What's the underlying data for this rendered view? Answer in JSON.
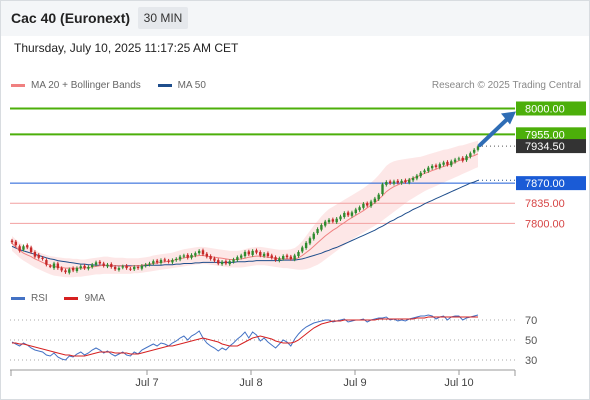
{
  "header": {
    "title": "Cac 40 (Euronext)",
    "timeframe": "30 MIN",
    "datetime": "Thursday, July 10, 2025 11:17:25 AM CET"
  },
  "legend": {
    "ma20": "MA 20 + Bollinger Bands",
    "ma50": "MA 50",
    "rsi": "RSI",
    "ma9": "9MA",
    "credit": "Research © 2025 Trading Central"
  },
  "colors": {
    "ma20": "#f08080",
    "ma50": "#1f4e8c",
    "bollinger": "#fde3e3",
    "target": "#4caf0a",
    "support_blue": "#1a5bd6",
    "support_red": "#d64545",
    "arrow": "#2f6db5",
    "rsi": "#4472c4",
    "rsi_ma": "#d62020"
  },
  "chart_data": [
    {
      "type": "candlestick",
      "title": "Cac 40 (Euronext)",
      "timeframe": "30 MIN",
      "x_ticks": [
        "Jul 7",
        "Jul 8",
        "Jul 9",
        "Jul 10"
      ],
      "ylim": [
        7710,
        8020
      ],
      "last_price": 7934.5,
      "levels": [
        {
          "value": 8000.0,
          "label": "8000.00",
          "kind": "target"
        },
        {
          "value": 7955.0,
          "label": "7955.00",
          "kind": "target"
        },
        {
          "value": 7870.0,
          "label": "7870.00",
          "kind": "pivot"
        },
        {
          "value": 7835.0,
          "label": "7835.00",
          "kind": "support"
        },
        {
          "value": 7800.0,
          "label": "7800.00",
          "kind": "support"
        }
      ],
      "last_price_label": "7934.50",
      "close": [
        7767,
        7762,
        7752,
        7760,
        7758,
        7750,
        7742,
        7740,
        7738,
        7728,
        7725,
        7730,
        7722,
        7718,
        7715,
        7720,
        7718,
        7722,
        7725,
        7722,
        7724,
        7728,
        7732,
        7730,
        7726,
        7728,
        7724,
        7720,
        7722,
        7725,
        7722,
        7720,
        7724,
        7722,
        7726,
        7728,
        7730,
        7734,
        7732,
        7736,
        7735,
        7733,
        7736,
        7738,
        7742,
        7744,
        7740,
        7745,
        7748,
        7752,
        7746,
        7742,
        7738,
        7735,
        7730,
        7733,
        7730,
        7734,
        7737,
        7741,
        7744,
        7750,
        7746,
        7752,
        7749,
        7744,
        7747,
        7743,
        7740,
        7736,
        7739,
        7743,
        7741,
        7738,
        7744,
        7750,
        7758,
        7766,
        7774,
        7782,
        7790,
        7797,
        7803,
        7806,
        7803,
        7808,
        7812,
        7818,
        7814,
        7819,
        7824,
        7828,
        7834,
        7831,
        7838,
        7843,
        7850,
        7868,
        7872,
        7870,
        7873,
        7871,
        7874,
        7872,
        7876,
        7879,
        7883,
        7888,
        7892,
        7897,
        7900,
        7898,
        7903,
        7906,
        7902,
        7908,
        7911,
        7913,
        7909,
        7917,
        7922,
        7928,
        7934
      ],
      "open": [
        7770,
        7768,
        7760,
        7754,
        7762,
        7758,
        7750,
        7745,
        7740,
        7736,
        7726,
        7722,
        7730,
        7722,
        7718,
        7714,
        7722,
        7717,
        7722,
        7726,
        7721,
        7724,
        7728,
        7733,
        7730,
        7725,
        7729,
        7724,
        7719,
        7723,
        7726,
        7721,
        7720,
        7724,
        7721,
        7726,
        7728,
        7730,
        7735,
        7731,
        7737,
        7735,
        7732,
        7736,
        7737,
        7742,
        7745,
        7740,
        7744,
        7748,
        7753,
        7747,
        7743,
        7739,
        7736,
        7729,
        7734,
        7729,
        7733,
        7736,
        7740,
        7743,
        7751,
        7745,
        7753,
        7750,
        7743,
        7748,
        7744,
        7741,
        7735,
        7738,
        7744,
        7742,
        7737,
        7743,
        7751,
        7757,
        7765,
        7773,
        7783,
        7789,
        7796,
        7802,
        7807,
        7802,
        7807,
        7811,
        7819,
        7813,
        7818,
        7823,
        7827,
        7835,
        7830,
        7837,
        7842,
        7851,
        7867,
        7873,
        7869,
        7874,
        7870,
        7875,
        7871,
        7875,
        7878,
        7882,
        7889,
        7891,
        7896,
        7901,
        7897,
        7902,
        7907,
        7901,
        7907,
        7912,
        7914,
        7910,
        7916,
        7923,
        7928
      ],
      "bollinger_upper": [
        7778,
        7772,
        7766,
        7762,
        7760,
        7757,
        7754,
        7750,
        7747,
        7745,
        7743,
        7742,
        7741,
        7740,
        7739,
        7739,
        7738,
        7738,
        7737,
        7737,
        7738,
        7739,
        7740,
        7741,
        7742,
        7742,
        7741,
        7740,
        7740,
        7740,
        7739,
        7739,
        7739,
        7739,
        7740,
        7741,
        7742,
        7744,
        7745,
        7746,
        7747,
        7748,
        7749,
        7751,
        7753,
        7755,
        7756,
        7757,
        7758,
        7759,
        7759,
        7758,
        7757,
        7756,
        7755,
        7754,
        7753,
        7752,
        7752,
        7752,
        7753,
        7755,
        7757,
        7758,
        7759,
        7759,
        7758,
        7757,
        7756,
        7755,
        7754,
        7754,
        7754,
        7755,
        7757,
        7762,
        7769,
        7778,
        7787,
        7796,
        7804,
        7812,
        7819,
        7825,
        7829,
        7833,
        7837,
        7841,
        7845,
        7849,
        7853,
        7857,
        7861,
        7866,
        7871,
        7877,
        7884,
        7892,
        7900,
        7905,
        7908,
        7910,
        7911,
        7912,
        7913,
        7914,
        7915,
        7916,
        7918,
        7920,
        7922,
        7924,
        7926,
        7928,
        7929,
        7931,
        7933,
        7935,
        7936,
        7938,
        7940,
        7942,
        7944
      ],
      "bollinger_lower": [
        7752,
        7746,
        7740,
        7735,
        7731,
        7727,
        7723,
        7720,
        7717,
        7714,
        7711,
        7709,
        7708,
        7707,
        7706,
        7706,
        7706,
        7707,
        7707,
        7708,
        7709,
        7710,
        7711,
        7711,
        7712,
        7712,
        7712,
        7712,
        7712,
        7712,
        7712,
        7712,
        7713,
        7713,
        7714,
        7715,
        7716,
        7717,
        7718,
        7719,
        7720,
        7721,
        7722,
        7723,
        7724,
        7725,
        7726,
        7727,
        7728,
        7729,
        7729,
        7729,
        7728,
        7727,
        7726,
        7725,
        7724,
        7723,
        7723,
        7723,
        7723,
        7724,
        7725,
        7726,
        7727,
        7727,
        7727,
        7726,
        7725,
        7724,
        7723,
        7722,
        7722,
        7721,
        7720,
        7719,
        7719,
        7720,
        7722,
        7725,
        7728,
        7732,
        7737,
        7742,
        7747,
        7752,
        7757,
        7762,
        7767,
        7772,
        7776,
        7780,
        7784,
        7788,
        7792,
        7796,
        7800,
        7805,
        7810,
        7815,
        7820,
        7825,
        7830,
        7835,
        7840,
        7844,
        7848,
        7852,
        7856,
        7859,
        7862,
        7865,
        7868,
        7871,
        7874,
        7877,
        7880,
        7883,
        7886,
        7889,
        7892,
        7895,
        7898
      ],
      "ma20": [
        7765,
        7759,
        7753,
        7748,
        7745,
        7742,
        7738,
        7735,
        7732,
        7729,
        7727,
        7725,
        7724,
        7723,
        7722,
        7722,
        7722,
        7722,
        7722,
        7722,
        7723,
        7724,
        7725,
        7726,
        7727,
        7727,
        7726,
        7726,
        7726,
        7726,
        7725,
        7725,
        7726,
        7726,
        7727,
        7728,
        7729,
        7730,
        7731,
        7732,
        7733,
        7734,
        7735,
        7737,
        7738,
        7740,
        7741,
        7742,
        7743,
        7744,
        7744,
        7743,
        7742,
        7741,
        7740,
        7739,
        7738,
        7737,
        7737,
        7737,
        7738,
        7739,
        7741,
        7742,
        7743,
        7743,
        7742,
        7741,
        7740,
        7739,
        7738,
        7738,
        7738,
        7738,
        7738,
        7740,
        7744,
        7749,
        7754,
        7760,
        7766,
        7772,
        7778,
        7783,
        7788,
        7792,
        7797,
        7801,
        7806,
        7810,
        7814,
        7818,
        7822,
        7827,
        7831,
        7836,
        7842,
        7848,
        7855,
        7860,
        7864,
        7867,
        7870,
        7873,
        7876,
        7879,
        7881,
        7884,
        7887,
        7889,
        7892,
        7894,
        7897,
        7899,
        7901,
        7904,
        7906,
        7909,
        7911,
        7913,
        7916,
        7918,
        7921
      ],
      "ma50": [
        7760,
        7757,
        7754,
        7752,
        7750,
        7748,
        7746,
        7744,
        7742,
        7740,
        7738,
        7737,
        7735,
        7734,
        7733,
        7732,
        7731,
        7730,
        7729,
        7729,
        7728,
        7728,
        7727,
        7727,
        7727,
        7726,
        7726,
        7726,
        7726,
        7726,
        7726,
        7726,
        7726,
        7726,
        7726,
        7726,
        7727,
        7727,
        7727,
        7727,
        7728,
        7728,
        7728,
        7729,
        7729,
        7730,
        7730,
        7730,
        7731,
        7731,
        7732,
        7732,
        7732,
        7732,
        7732,
        7732,
        7732,
        7732,
        7732,
        7733,
        7733,
        7733,
        7734,
        7734,
        7735,
        7735,
        7735,
        7735,
        7735,
        7735,
        7735,
        7736,
        7736,
        7736,
        7736,
        7737,
        7738,
        7740,
        7742,
        7744,
        7746,
        7748,
        7751,
        7753,
        7756,
        7758,
        7761,
        7764,
        7767,
        7770,
        7773,
        7776,
        7779,
        7782,
        7785,
        7788,
        7792,
        7795,
        7799,
        7803,
        7806,
        7810,
        7813,
        7817,
        7820,
        7824,
        7827,
        7830,
        7834,
        7837,
        7840,
        7843,
        7846,
        7849,
        7852,
        7855,
        7858,
        7861,
        7864,
        7867,
        7870,
        7872,
        7875
      ],
      "projection": {
        "from": 7934.5,
        "to": 8000.0
      }
    },
    {
      "type": "line",
      "title": "RSI",
      "series_names": [
        "RSI",
        "9MA"
      ],
      "yticks": [
        30,
        50,
        70
      ],
      "ylim": [
        20,
        80
      ],
      "rsi": [
        48,
        46,
        44,
        47,
        45,
        42,
        40,
        39,
        38,
        35,
        34,
        37,
        33,
        31,
        30,
        34,
        33,
        36,
        38,
        35,
        37,
        40,
        42,
        40,
        37,
        39,
        36,
        34,
        36,
        38,
        35,
        34,
        38,
        36,
        40,
        42,
        44,
        46,
        44,
        47,
        46,
        44,
        47,
        49,
        52,
        54,
        50,
        54,
        56,
        59,
        52,
        47,
        44,
        42,
        39,
        42,
        40,
        44,
        47,
        51,
        54,
        58,
        52,
        58,
        55,
        49,
        52,
        48,
        45,
        42,
        46,
        50,
        48,
        44,
        51,
        56,
        60,
        63,
        65,
        67,
        68,
        69,
        70,
        70,
        68,
        69,
        70,
        71,
        68,
        69,
        70,
        70,
        71,
        68,
        70,
        71,
        72,
        72,
        73,
        70,
        71,
        69,
        70,
        69,
        71,
        72,
        73,
        74,
        74,
        75,
        74,
        71,
        73,
        74,
        70,
        73,
        74,
        74,
        70,
        72,
        73,
        74,
        75
      ],
      "rsi_ma": [
        47,
        47,
        46,
        46,
        45,
        44,
        43,
        42,
        41,
        40,
        39,
        38,
        37,
        36,
        35,
        35,
        34,
        34,
        34,
        34,
        35,
        36,
        37,
        38,
        38,
        38,
        38,
        37,
        37,
        37,
        37,
        36,
        36,
        36,
        37,
        38,
        39,
        40,
        41,
        42,
        43,
        44,
        44,
        45,
        46,
        47,
        48,
        49,
        50,
        51,
        52,
        51,
        50,
        49,
        48,
        46,
        45,
        44,
        44,
        44,
        46,
        48,
        50,
        52,
        53,
        54,
        53,
        52,
        51,
        49,
        48,
        47,
        47,
        47,
        48,
        50,
        53,
        56,
        59,
        62,
        64,
        66,
        67,
        68,
        69,
        69,
        69,
        70,
        70,
        70,
        70,
        70,
        70,
        70,
        70,
        70,
        71,
        71,
        71,
        71,
        71,
        71,
        71,
        71,
        71,
        71,
        72,
        72,
        72,
        73,
        73,
        73,
        73,
        73,
        73,
        73,
        73,
        73,
        73,
        73,
        73,
        73,
        73
      ]
    }
  ]
}
